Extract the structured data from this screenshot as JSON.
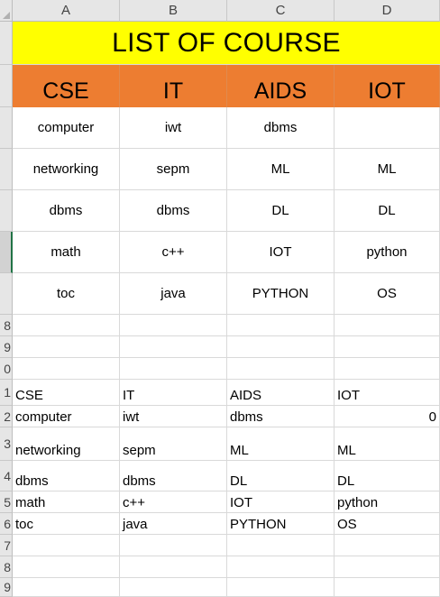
{
  "columns": [
    "A",
    "B",
    "C",
    "D"
  ],
  "row_numbers": [
    "",
    "",
    "",
    "",
    "",
    "",
    "",
    "8",
    "9",
    "0",
    "1",
    "2",
    "3",
    "4",
    "5",
    "6",
    "7",
    "8",
    "9"
  ],
  "title": "LIST OF COURSE",
  "headers": [
    "CSE",
    "IT",
    "AIDS",
    "IOT"
  ],
  "table_rows": [
    [
      "computer",
      "iwt",
      "dbms",
      ""
    ],
    [
      "networking",
      "sepm",
      "ML",
      "ML"
    ],
    [
      "dbms",
      "dbms",
      "DL",
      "DL"
    ],
    [
      "math",
      "c++",
      "IOT",
      "python"
    ],
    [
      "toc",
      "java",
      "PYTHON",
      "OS"
    ]
  ],
  "list_rows": [
    [
      "CSE",
      "IT",
      "AIDS",
      "IOT"
    ],
    [
      "computer",
      "iwt",
      "dbms",
      "0"
    ],
    [
      "networking",
      "sepm",
      "ML",
      "ML"
    ],
    [
      "dbms",
      "dbms",
      "DL",
      "DL"
    ],
    [
      "math",
      "c++",
      "IOT",
      "python"
    ],
    [
      "toc",
      "java",
      "PYTHON",
      "OS"
    ]
  ],
  "colors": {
    "title_fill": "#ffff00",
    "header_fill": "#ed7d31",
    "selected_row_accent": "#217346"
  }
}
